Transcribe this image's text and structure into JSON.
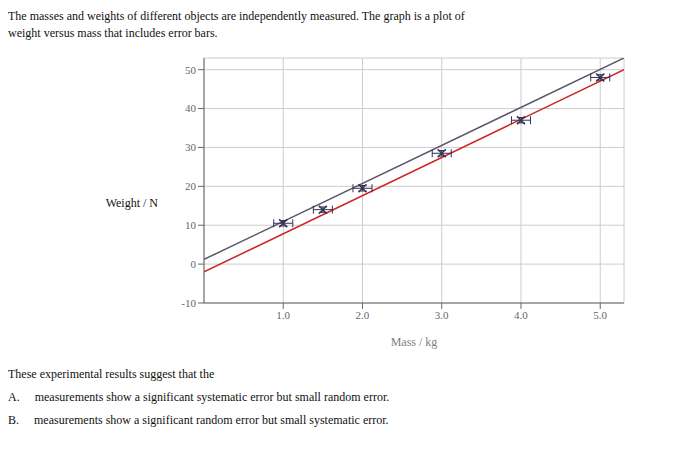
{
  "chart_data": {
    "type": "scatter",
    "title": "The masses and weights of different objects are independently measured. The graph is a plot of",
    "subtitle": "weight versus mass that includes error bars.",
    "x_label": "Mass / kg",
    "y_label": "Weight / N",
    "annotations": [
      "These experimental results suggest that the",
      "A.     measurements show a significant systematic error but small random error.",
      "B.     measurements show a significant random error but small systematic error."
    ],
    "xlim": [
      0,
      5.3
    ],
    "ylim": [
      -10,
      53
    ],
    "xticks": [
      {
        "value": 1.0,
        "label": "1.0"
      },
      {
        "value": 2.0,
        "label": "2.0"
      },
      {
        "value": 3.0,
        "label": "3.0"
      },
      {
        "value": 4.0,
        "label": "4.0"
      },
      {
        "value": 5.0,
        "label": "5.0"
      }
    ],
    "yticks": [
      -10,
      0,
      10,
      20,
      30,
      40,
      50
    ],
    "grid": true,
    "series": [
      {
        "type": "line",
        "color": "#555566",
        "x": [
          0.0,
          5.3
        ],
        "values": [
          1.2,
          53.0
        ]
      },
      {
        "type": "line",
        "color": "#cc2222",
        "x": [
          0.0,
          5.3
        ],
        "values": [
          -2.0,
          50.0
        ]
      },
      {
        "type": "scatter",
        "color": "#333355",
        "marker": "x",
        "x": [
          1.0,
          1.5,
          2.0,
          3.0,
          4.0,
          5.0
        ],
        "values": [
          10.5,
          14.0,
          19.5,
          28.5,
          37.0,
          48.0
        ],
        "xerr": [
          0.12,
          0.12,
          0.12,
          0.12,
          0.12,
          0.12
        ],
        "yerr": [
          0.7,
          0.7,
          0.7,
          0.7,
          0.7,
          0.7
        ]
      }
    ]
  }
}
